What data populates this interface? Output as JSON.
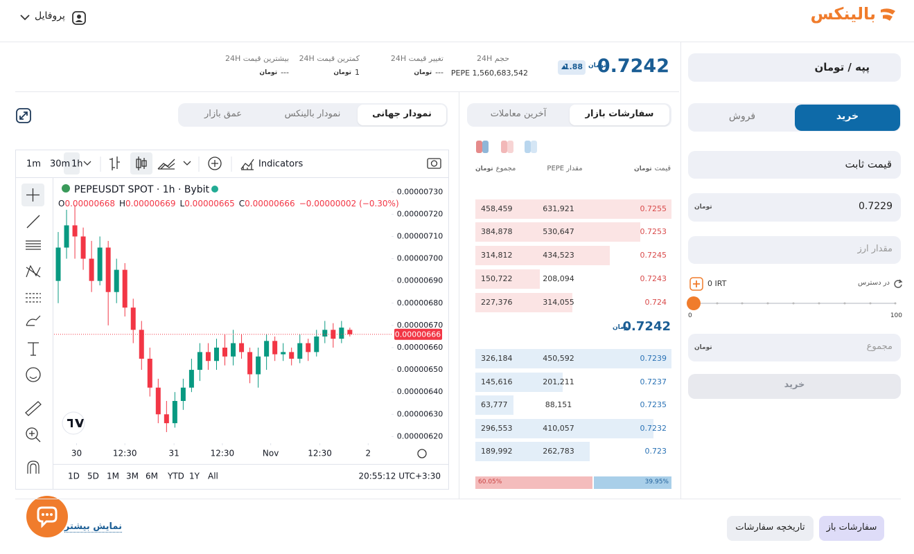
{
  "header": {
    "brand": "بالینکس",
    "profile": "پروفایل"
  },
  "currency_symbol": "تومان",
  "market": {
    "pair": "پپه / تومان",
    "last_price": "0.7242",
    "change_badge": "1.88",
    "stats": [
      {
        "label": "حجم 24H",
        "value": "PEPE 1,560,683,542"
      },
      {
        "label": "تغییر قیمت 24H",
        "value": "---"
      },
      {
        "label": "کمترین قیمت 24H",
        "value": "1"
      },
      {
        "label": "بیشترین قیمت 24H",
        "value": "---"
      }
    ]
  },
  "chart_tabs": [
    "نمودار جهانی",
    "نمودار بالینکس",
    "عمق بازار"
  ],
  "chart_toolbar": {
    "intervals": [
      "1m",
      "30m",
      "1h"
    ],
    "indicators": "Indicators",
    "ranges": [
      "1D",
      "5D",
      "1M",
      "3M",
      "6M",
      "YTD",
      "1Y",
      "All"
    ],
    "clock": "20:55:12 UTC+3:30"
  },
  "chart_data": {
    "type": "candlestick",
    "title": "PEPEUSDT SPOT · 1h · Bybit",
    "legend": [
      {
        "key": "O",
        "value": "0.00000668"
      },
      {
        "key": "H",
        "value": "0.00000669"
      },
      {
        "key": "L",
        "value": "0.00000665"
      },
      {
        "key": "C",
        "value": "0.00000666"
      }
    ],
    "change": "−0.00000002 (−0.30%)",
    "open": [
      6.9e-06,
      7.05e-06,
      7.15e-06,
      7.1e-06,
      7e-06,
      6.9e-06,
      7.05e-06,
      6.85e-06,
      6.95e-06,
      6.78e-06,
      6.68e-06,
      6.55e-06,
      6.42e-06,
      6.3e-06,
      6.26e-06,
      6.36e-06,
      6.42e-06,
      6.5e-06,
      6.58e-06,
      6.54e-06,
      6.6e-06,
      6.56e-06,
      6.62e-06,
      6.58e-06,
      6.48e-06,
      6.56e-06,
      6.63e-06,
      6.57e-06,
      6.58e-06,
      6.55e-06,
      6.62e-06,
      6.58e-06,
      6.65e-06,
      6.68e-06,
      6.64e-06,
      6.68e-06
    ],
    "high": [
      7.12e-06,
      7.22e-06,
      7.24e-06,
      7.14e-06,
      7.08e-06,
      7.1e-06,
      7.08e-06,
      7e-06,
      6.98e-06,
      6.82e-06,
      6.72e-06,
      6.6e-06,
      6.46e-06,
      6.36e-06,
      6.4e-06,
      6.46e-06,
      6.55e-06,
      6.62e-06,
      6.62e-06,
      6.64e-06,
      6.66e-06,
      6.68e-06,
      6.66e-06,
      6.6e-06,
      6.6e-06,
      6.66e-06,
      6.65e-06,
      6.62e-06,
      6.6e-06,
      6.66e-06,
      6.64e-06,
      6.68e-06,
      6.72e-06,
      6.71e-06,
      6.72e-06,
      6.69e-06
    ],
    "low": [
      6.8e-06,
      7e-06,
      7e-06,
      6.95e-06,
      6.85e-06,
      6.88e-06,
      6.7e-06,
      6.8e-06,
      6.74e-06,
      6.62e-06,
      6.5e-06,
      6.38e-06,
      6.26e-06,
      6.22e-06,
      6.24e-06,
      6.32e-06,
      6.4e-06,
      6.45e-06,
      6.5e-06,
      6.5e-06,
      6.52e-06,
      6.52e-06,
      6.55e-06,
      6.44e-06,
      6.42e-06,
      6.5e-06,
      6.54e-06,
      6.54e-06,
      6.52e-06,
      6.53e-06,
      6.54e-06,
      6.56e-06,
      6.62e-06,
      6.6e-06,
      6.62e-06,
      6.65e-06
    ],
    "close": [
      7.05e-06,
      7.15e-06,
      7.1e-06,
      7e-06,
      6.9e-06,
      7.05e-06,
      6.85e-06,
      6.95e-06,
      6.78e-06,
      6.68e-06,
      6.55e-06,
      6.42e-06,
      6.3e-06,
      6.26e-06,
      6.36e-06,
      6.42e-06,
      6.5e-06,
      6.58e-06,
      6.54e-06,
      6.6e-06,
      6.56e-06,
      6.62e-06,
      6.58e-06,
      6.48e-06,
      6.56e-06,
      6.63e-06,
      6.57e-06,
      6.58e-06,
      6.55e-06,
      6.62e-06,
      6.58e-06,
      6.65e-06,
      6.68e-06,
      6.64e-06,
      6.69e-06,
      6.66e-06
    ],
    "up_color": "#089981",
    "down_color": "#f23645",
    "ylim": [
      6.17e-06,
      7.36e-06
    ],
    "yticks": [
      {
        "value": 7.3e-06,
        "label": "0.00000730"
      },
      {
        "value": 7.2e-06,
        "label": "0.00000720"
      },
      {
        "value": 7.1e-06,
        "label": "0.00000710"
      },
      {
        "value": 7e-06,
        "label": "0.00000700"
      },
      {
        "value": 6.9e-06,
        "label": "0.00000690"
      },
      {
        "value": 6.8e-06,
        "label": "0.00000680"
      },
      {
        "value": 6.7e-06,
        "label": "0.00000670"
      },
      {
        "value": 6.6e-06,
        "label": "0.00000660"
      },
      {
        "value": 6.5e-06,
        "label": "0.00000650"
      },
      {
        "value": 6.4e-06,
        "label": "0.00000640"
      },
      {
        "value": 6.3e-06,
        "label": "0.00000630"
      },
      {
        "value": 6.2e-06,
        "label": "0.00000620"
      }
    ],
    "xlim": [
      -0.5,
      40
    ],
    "xticks": [
      {
        "value": 2.2,
        "label": "30"
      },
      {
        "value": 8,
        "label": "12:30"
      },
      {
        "value": 13.9,
        "label": "31"
      },
      {
        "value": 19.7,
        "label": "12:30"
      },
      {
        "value": 25.5,
        "label": "Nov"
      },
      {
        "value": 31.4,
        "label": "12:30"
      },
      {
        "value": 37.2,
        "label": "2"
      }
    ],
    "last_price": {
      "value": 6.66e-06,
      "label": "0.00000666"
    }
  },
  "order_book": {
    "tabs": [
      "سفارشات بازار",
      "آخرین معاملات"
    ],
    "columns": [
      "قیمت",
      "مقدار PEPE",
      "مجموع"
    ],
    "asks": [
      [
        "0.7255",
        "631,921",
        "458,459"
      ],
      [
        "0.7253",
        "530,647",
        "384,878"
      ],
      [
        "0.7245",
        "434,523",
        "314,812"
      ],
      [
        "0.7243",
        "208,094",
        "150,722"
      ],
      [
        "0.724",
        "314,055",
        "227,376"
      ]
    ],
    "mid_price": "0.7242",
    "bids": [
      [
        "0.7239",
        "450,592",
        "326,184"
      ],
      [
        "0.7237",
        "201,211",
        "145,616"
      ],
      [
        "0.7235",
        "88,151",
        "63,777"
      ],
      [
        "0.7232",
        "410,057",
        "296,553"
      ],
      [
        "0.723",
        "262,783",
        "189,992"
      ]
    ],
    "ratio": [
      "60.05%",
      "39.95%"
    ]
  },
  "order_form": {
    "side_tabs": [
      "خرید",
      "فروش"
    ],
    "order_type": "قیمت ثابت",
    "price": "0.7229",
    "amount_placeholder": "مقدار ارز",
    "available_label": "در دسترس",
    "available": "0 IRT",
    "slider": [
      "0",
      "100"
    ],
    "total_placeholder": "مجموع",
    "submit": "خرید"
  },
  "footer": {
    "tabs": [
      "سفارشات باز",
      "تاریخچه سفارشات"
    ],
    "more": "نمایش بیشتر"
  }
}
